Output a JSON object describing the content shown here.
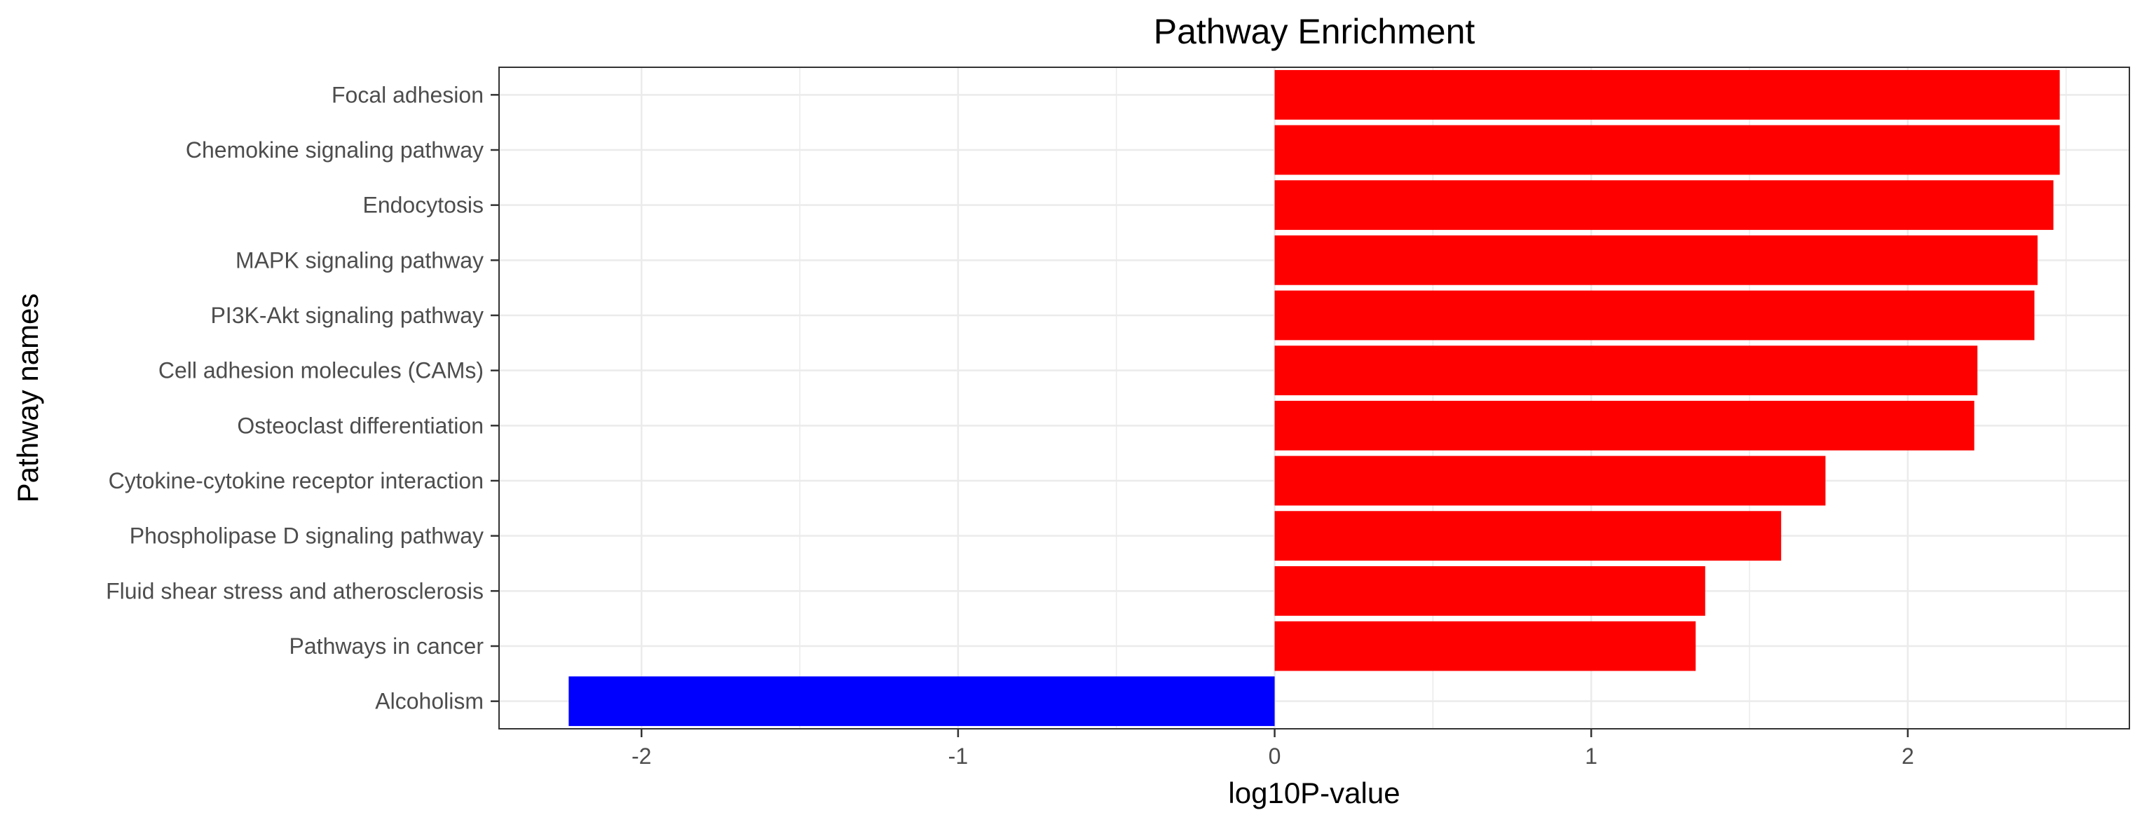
{
  "chart_data": {
    "type": "bar",
    "orientation": "horizontal",
    "title": "Pathway Enrichment",
    "xlabel": "log10P-value",
    "ylabel": "Pathway names",
    "categories": [
      "Focal adhesion",
      "Chemokine signaling pathway",
      "Endocytosis",
      "MAPK signaling pathway",
      "PI3K-Akt signaling pathway",
      "Cell adhesion molecules (CAMs)",
      "Osteoclast differentiation",
      "Cytokine-cytokine receptor interaction",
      "Phospholipase D signaling pathway",
      "Fluid shear stress and atherosclerosis",
      "Pathways in cancer",
      "Alcoholism"
    ],
    "values": [
      2.48,
      2.48,
      2.46,
      2.41,
      2.4,
      2.22,
      2.21,
      1.74,
      1.6,
      1.36,
      1.33,
      -2.23
    ],
    "xlim": [
      -2.45,
      2.7
    ],
    "xticks": [
      -2,
      -1,
      0,
      1,
      2
    ],
    "xtick_labels": [
      "-2",
      "-1",
      "0",
      "1",
      "2"
    ],
    "grid": true,
    "colors": {
      "positive": "#ff0000",
      "negative": "#0000ff",
      "grid": "#ebebeb",
      "panel_border": "#333333"
    }
  }
}
